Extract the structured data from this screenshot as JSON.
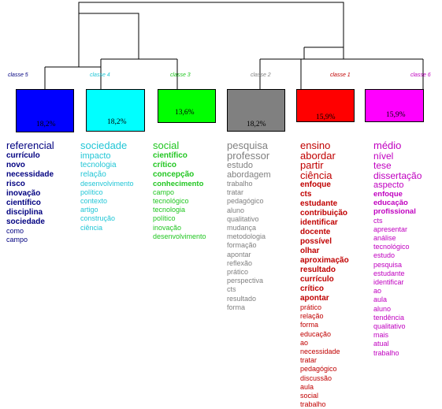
{
  "colors": {
    "classe5": "#0000ff",
    "classe4": "#00ffff",
    "classe3": "#00ff00",
    "classe2": "#808080",
    "classe1": "#ff0000",
    "classe6": "#ff00ff",
    "text5": "#000080",
    "text4": "#21c6d6",
    "text3": "#21c621",
    "text2": "#808080",
    "text1": "#c00000",
    "text6": "#c000c0"
  },
  "classes": [
    {
      "id": "classe5",
      "label": "classe 5",
      "percent": "18,2%",
      "words": [
        "referencial",
        "currículo",
        "novo",
        "necessidade",
        "risco",
        "inovação",
        "científico",
        "disciplina",
        "sociedade",
        "como",
        "campo"
      ]
    },
    {
      "id": "classe4",
      "label": "classe 4",
      "percent": "18,2%",
      "words": [
        "sociedade",
        "impacto",
        "tecnologia",
        "relação",
        "desenvolvimento",
        "político",
        "contexto",
        "artigo",
        "construção",
        "ciência"
      ]
    },
    {
      "id": "classe3",
      "label": "classe 3",
      "percent": "13,6%",
      "words": [
        "social",
        "científico",
        "crítico",
        "concepção",
        "conhecimento",
        "campo",
        "tecnológico",
        "tecnologia",
        "político",
        "inovação",
        "desenvolvimento"
      ]
    },
    {
      "id": "classe2",
      "label": "classe 2",
      "percent": "18,2%",
      "words": [
        "pesquisa",
        "professor",
        "estudo",
        "abordagem",
        "trabalho",
        "tratar",
        "pedagógico",
        "aluno",
        "qualitativo",
        "mudança",
        "metodologia",
        "formação",
        "apontar",
        "reflexão",
        "prático",
        "perspectiva",
        "cts",
        "resultado",
        "forma"
      ]
    },
    {
      "id": "classe1",
      "label": "classe 1",
      "percent": "15,9%",
      "words": [
        "ensino",
        "abordar",
        "partir",
        "ciência",
        "enfoque",
        "cts",
        "estudante",
        "contribuição",
        "identificar",
        "docente",
        "possível",
        "olhar",
        "aproximação",
        "resultado",
        "currículo",
        "crítico",
        "apontar",
        "prático",
        "relação",
        "forma",
        "educação",
        "ao",
        "necessidade",
        "tratar",
        "pedagógico",
        "discussão",
        "aula",
        "social",
        "trabalho"
      ]
    },
    {
      "id": "classe6",
      "label": "classe 6",
      "percent": "15,9%",
      "words": [
        "médio",
        "nível",
        "tese",
        "dissertação",
        "aspecto",
        "enfoque",
        "educação",
        "profissional",
        "cts",
        "apresentar",
        "análise",
        "tecnológico",
        "estudo",
        "pesquisa",
        "estudante",
        "identificar",
        "ao",
        "aula",
        "aluno",
        "tendência",
        "qualitativo",
        "mais",
        "atual",
        "trabalho"
      ]
    }
  ]
}
